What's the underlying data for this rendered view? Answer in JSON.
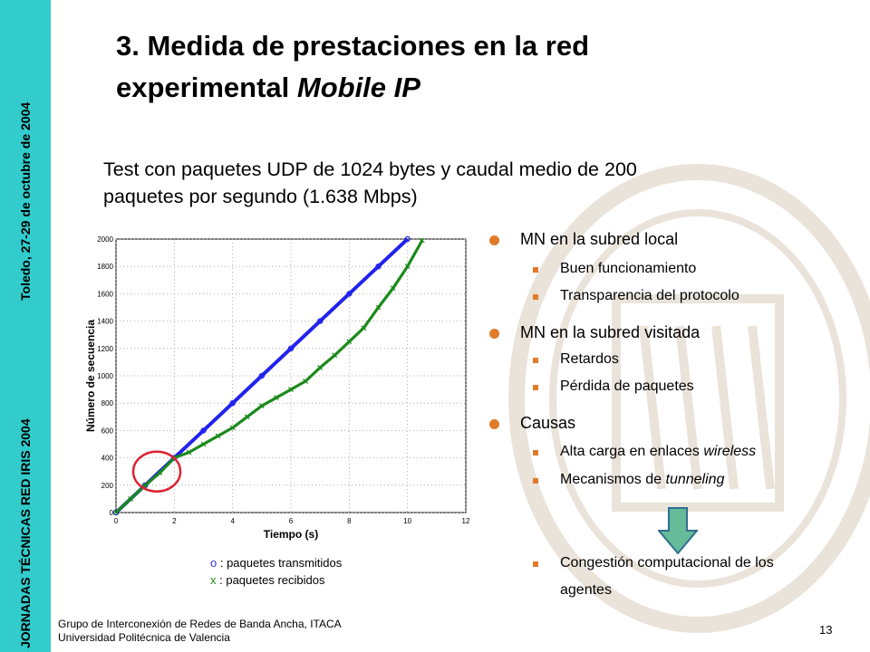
{
  "sidebar": {
    "text_lower": "JORNADAS TÉCNICAS RED IRIS 2004",
    "text_upper": "Toledo, 27-29 de octubre de 2004",
    "color": "#33cccc"
  },
  "title": {
    "line1": "3. Medida de prestaciones en la red",
    "line2_prefix": "experimental ",
    "line2_italic": "Mobile IP"
  },
  "subtitle": {
    "line1": "Test con paquetes UDP de 1024 bytes y caudal medio de 200",
    "line2": "paquetes por segundo (1.638 Mbps)"
  },
  "chart_data": {
    "type": "scatter",
    "xlabel": "Tiempo (s)",
    "ylabel": "Número de secuencia",
    "xlim": [
      0,
      12
    ],
    "ylim": [
      0,
      2000
    ],
    "xticks": [
      "0",
      "2",
      "4",
      "6",
      "8",
      "10",
      "12"
    ],
    "yticks": [
      "0",
      "200",
      "400",
      "600",
      "800",
      "1000",
      "1200",
      "1400",
      "1600",
      "1800",
      "2000"
    ],
    "grid": true,
    "series": [
      {
        "name": "paquetes transmitidos",
        "marker": "o",
        "color": "#2222ee",
        "x": [
          0,
          1,
          2,
          3,
          4,
          5,
          6,
          7,
          8,
          9,
          10
        ],
        "y": [
          0,
          200,
          400,
          600,
          800,
          1000,
          1200,
          1400,
          1600,
          1800,
          2000
        ]
      },
      {
        "name": "paquetes recibidos",
        "marker": "x",
        "color": "#1a8a1a",
        "x": [
          0,
          0.5,
          1,
          1.5,
          2,
          2.5,
          3,
          3.5,
          4,
          4.5,
          5,
          5.5,
          6,
          6.5,
          7,
          7.5,
          8,
          8.5,
          9,
          9.5,
          10,
          10.5
        ],
        "y": [
          0,
          100,
          200,
          290,
          400,
          440,
          500,
          560,
          620,
          700,
          780,
          840,
          900,
          960,
          1060,
          1150,
          1250,
          1350,
          1500,
          1640,
          1800,
          1990
        ]
      }
    ],
    "annotation": {
      "type": "circle",
      "color": "#dd2233",
      "x": 1.4,
      "y": 300
    }
  },
  "legend": {
    "o_symbol": "o",
    "o_text": " : paquetes transmitidos",
    "x_symbol": "x",
    "x_text": " : paquetes recibidos"
  },
  "bullets": [
    {
      "text": "MN en la subred local",
      "subs": [
        "Buen funcionamiento",
        "Transparencia del protocolo"
      ]
    },
    {
      "text": "MN en la subred visitada",
      "subs": [
        "Retardos",
        "Pérdida de paquetes"
      ]
    },
    {
      "text": "Causas",
      "subs": [
        "Alta carga en enlaces wireless",
        "Mecanismos de tunneling"
      ]
    }
  ],
  "sub_causas": {
    "s1_prefix": "Alta carga en enlaces ",
    "s1_italic": "wireless",
    "s2_prefix": "Mecanismos de ",
    "s2_italic": "tunneling"
  },
  "conclusion": {
    "line1": "Congestión computacional de los",
    "line2": "agentes"
  },
  "footer": {
    "line1": "Grupo de Interconexión de Redes de Banda Ancha, ITACA",
    "line2": "Universidad Politécnica de Valencia"
  },
  "page_number": "13",
  "colors": {
    "bullet": "#e07b2a",
    "arrow": "#66bb99"
  }
}
